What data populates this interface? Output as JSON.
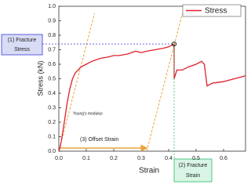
{
  "chart_data": {
    "type": "line",
    "xlabel": "Strain",
    "ylabel": "Stress (kN)",
    "xlim": [
      0,
      0.68
    ],
    "ylim": [
      0,
      1.0
    ],
    "xticks": [
      {
        "value": 0,
        "label": "0.0"
      },
      0.1,
      0.2,
      0.3,
      0.4,
      0.5,
      0.6
    ],
    "yticks": [
      {
        "value": 0,
        "label": "0.0"
      },
      0.1,
      0.2,
      0.3,
      0.4,
      0.5,
      0.6,
      0.7,
      0.8,
      0.9,
      {
        "value": 1,
        "label": "1.0"
      }
    ],
    "legend": "upper right",
    "series": [
      {
        "name": "Stress",
        "color": "#e0202a",
        "x": [
          0,
          0.005,
          0.01,
          0.02,
          0.03,
          0.04,
          0.05,
          0.06,
          0.08,
          0.1,
          0.12,
          0.15,
          0.18,
          0.2,
          0.22,
          0.25,
          0.28,
          0.3,
          0.32,
          0.35,
          0.38,
          0.4,
          0.41,
          0.42,
          0.42,
          0.43,
          0.45,
          0.47,
          0.5,
          0.52,
          0.53,
          0.54,
          0.56,
          0.6,
          0.64,
          0.68
        ],
        "values": [
          0,
          0.03,
          0.08,
          0.2,
          0.33,
          0.43,
          0.5,
          0.54,
          0.58,
          0.6,
          0.62,
          0.64,
          0.65,
          0.66,
          0.66,
          0.67,
          0.69,
          0.68,
          0.69,
          0.7,
          0.71,
          0.72,
          0.73,
          0.74,
          0.5,
          0.56,
          0.56,
          0.58,
          0.6,
          0.62,
          0.6,
          0.45,
          0.47,
          0.48,
          0.5,
          0.52
        ]
      }
    ],
    "reference_lines": [
      {
        "color": "#e8a33a",
        "x": [
          0,
          0.13
        ],
        "values": [
          0,
          0.95
        ]
      },
      {
        "color": "#e8a33a",
        "x": [
          0.32,
          0.45
        ],
        "values": [
          0,
          0.95
        ]
      }
    ],
    "annotations": {
      "fracture_stress": [
        "(1) Fracture",
        "Stress"
      ],
      "fracture_strain": [
        "(2) Fracture",
        "Strain"
      ],
      "offset_strain": "(3) Offset Strain",
      "youngs_modulus": "Young's modulus"
    }
  }
}
